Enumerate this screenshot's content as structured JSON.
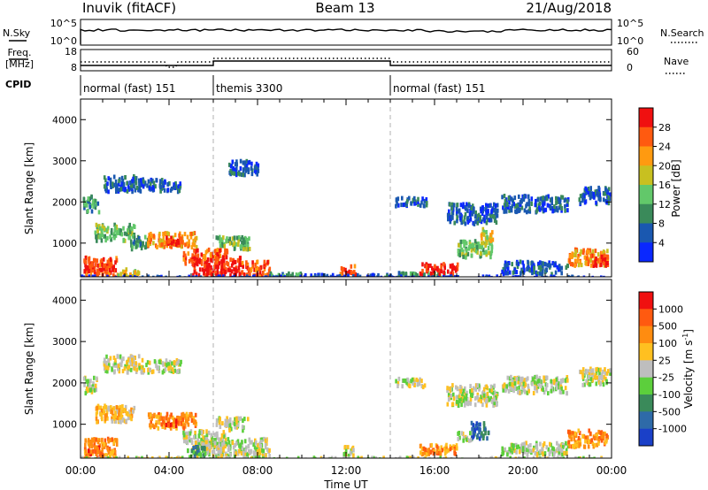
{
  "header": {
    "station": "Inuvik (fitACF)",
    "beam": "Beam 13",
    "date": "21/Aug/2018"
  },
  "top_panels": {
    "nsky_label": "N.Sky",
    "nsky_ticks": [
      "10^5",
      "10^0"
    ],
    "nsearch_label": "N.Search",
    "nsearch_ticks": [
      "10^5",
      "10^0"
    ],
    "freq_label_1": "Freq.",
    "freq_label_2": "[MHz]",
    "freq_ticks": [
      "18",
      "8"
    ],
    "nave_label": "Nave",
    "nave_ticks": [
      "60",
      "0"
    ],
    "cpid_label": "CPID",
    "cpid_segments": [
      {
        "name": "normal (fast) 151",
        "start": 0,
        "end": 6
      },
      {
        "name": "themis 3300",
        "start": 6,
        "end": 14
      },
      {
        "name": "normal (fast) 151",
        "start": 14,
        "end": 24
      }
    ]
  },
  "chart_data": [
    {
      "type": "heatmap",
      "panel": "power",
      "ylabel": "Slant Range [km]",
      "xlabel": "Time UT",
      "xlim": [
        0,
        24
      ],
      "ylim": [
        180,
        4500
      ],
      "xticks": [
        "00:00",
        "04:00",
        "08:00",
        "12:00",
        "16:00",
        "20:00",
        "00:00"
      ],
      "yticks": [
        1000,
        2000,
        3000,
        4000
      ],
      "colorbar": {
        "label": "Power [dB]",
        "ticks": [
          "4",
          "8",
          "12",
          "16",
          "20",
          "24",
          "28"
        ],
        "colors": [
          "#0a28ff",
          "#1a58b0",
          "#3a8a5a",
          "#62c86a",
          "#c8c020",
          "#ff9a10",
          "#ff5a10",
          "#f01010"
        ]
      },
      "regions": [
        {
          "t0": 0.1,
          "t1": 1.6,
          "r0": 200,
          "r1": 700,
          "level": 6
        },
        {
          "t0": 0.9,
          "t1": 1.5,
          "r0": 380,
          "r1": 560,
          "level": 7
        },
        {
          "t0": 1.6,
          "t1": 2.6,
          "r0": 220,
          "r1": 420,
          "level": 4
        },
        {
          "t0": 0.1,
          "t1": 0.8,
          "r0": 1800,
          "r1": 2200,
          "level": 2
        },
        {
          "t0": 1.0,
          "t1": 2.6,
          "r0": 2300,
          "r1": 2700,
          "level": 1
        },
        {
          "t0": 2.6,
          "t1": 4.5,
          "r0": 2300,
          "r1": 2600,
          "level": 1
        },
        {
          "t0": 0.6,
          "t1": 2.4,
          "r0": 1100,
          "r1": 1500,
          "level": 3
        },
        {
          "t0": 2.2,
          "t1": 3.0,
          "r0": 900,
          "r1": 1200,
          "level": 2
        },
        {
          "t0": 3.0,
          "t1": 5.2,
          "r0": 950,
          "r1": 1300,
          "level": 5
        },
        {
          "t0": 3.7,
          "t1": 4.6,
          "r0": 1000,
          "r1": 1200,
          "level": 7
        },
        {
          "t0": 4.6,
          "t1": 6.6,
          "r0": 550,
          "r1": 900,
          "level": 6
        },
        {
          "t0": 5.0,
          "t1": 6.0,
          "r0": 250,
          "r1": 650,
          "level": 7
        },
        {
          "t0": 6.0,
          "t1": 7.2,
          "r0": 250,
          "r1": 700,
          "level": 7
        },
        {
          "t0": 7.2,
          "t1": 8.5,
          "r0": 250,
          "r1": 600,
          "level": 6
        },
        {
          "t0": 6.1,
          "t1": 7.6,
          "r0": 900,
          "r1": 1200,
          "level": 3
        },
        {
          "t0": 6.6,
          "t1": 8.0,
          "r0": 2700,
          "r1": 3050,
          "level": 1
        },
        {
          "t0": 8.5,
          "t1": 10.0,
          "r0": 200,
          "r1": 320,
          "level": 2
        },
        {
          "t0": 11.7,
          "t1": 12.4,
          "r0": 260,
          "r1": 500,
          "level": 6
        },
        {
          "t0": 10.0,
          "t1": 14.0,
          "r0": 200,
          "r1": 280,
          "level": 1
        },
        {
          "t0": 14.2,
          "t1": 15.6,
          "r0": 1950,
          "r1": 2150,
          "level": 1
        },
        {
          "t0": 14.2,
          "t1": 16.8,
          "r0": 200,
          "r1": 330,
          "level": 2
        },
        {
          "t0": 15.3,
          "t1": 17.0,
          "r0": 300,
          "r1": 550,
          "level": 7
        },
        {
          "t0": 17.0,
          "t1": 18.6,
          "r0": 700,
          "r1": 1100,
          "level": 3
        },
        {
          "t0": 18.0,
          "t1": 18.6,
          "r0": 1100,
          "r1": 1400,
          "level": 4
        },
        {
          "t0": 16.5,
          "t1": 18.8,
          "r0": 1500,
          "r1": 2000,
          "level": 1
        },
        {
          "t0": 19.0,
          "t1": 22.0,
          "r0": 1800,
          "r1": 2200,
          "level": 1
        },
        {
          "t0": 19.0,
          "t1": 22.0,
          "r0": 300,
          "r1": 600,
          "level": 1
        },
        {
          "t0": 22.0,
          "t1": 23.8,
          "r0": 500,
          "r1": 900,
          "level": 5
        },
        {
          "t0": 23.0,
          "t1": 23.8,
          "r0": 500,
          "r1": 750,
          "level": 7
        },
        {
          "t0": 22.5,
          "t1": 23.9,
          "r0": 2000,
          "r1": 2400,
          "level": 1
        },
        {
          "t0": 0.0,
          "t1": 24.0,
          "r0": 180,
          "r1": 240,
          "level": 0
        }
      ]
    },
    {
      "type": "heatmap",
      "panel": "velocity",
      "ylabel": "Slant Range [km]",
      "xlabel": "Time UT",
      "xlim": [
        0,
        24
      ],
      "ylim": [
        180,
        4500
      ],
      "xticks": [
        "00:00",
        "04:00",
        "08:00",
        "12:00",
        "16:00",
        "20:00",
        "00:00"
      ],
      "yticks": [
        1000,
        2000,
        3000,
        4000
      ],
      "colorbar": {
        "label": "Velocity [m s",
        "label_sup": "-1",
        "label_end": "]",
        "ticks": [
          "1000",
          "500",
          "100",
          "25",
          "-25",
          "-100",
          "-500",
          "-1000"
        ],
        "colors": [
          "#1a40c8",
          "#2e6aa8",
          "#3a8a5a",
          "#5ccf3c",
          "#bebebe",
          "#ffc020",
          "#ff8c10",
          "#ff5a10",
          "#f01010"
        ]
      },
      "regions": [
        {
          "t0": 0.1,
          "t1": 1.6,
          "r0": 200,
          "r1": 700,
          "level": 6
        },
        {
          "t0": 0.3,
          "t1": 1.0,
          "r0": 300,
          "r1": 500,
          "level": 7
        },
        {
          "t0": 0.1,
          "t1": 0.8,
          "r0": 1800,
          "r1": 2200,
          "level": 4
        },
        {
          "t0": 1.0,
          "t1": 2.6,
          "r0": 2300,
          "r1": 2700,
          "level": 4
        },
        {
          "t0": 2.6,
          "t1": 4.5,
          "r0": 2300,
          "r1": 2600,
          "level": 4
        },
        {
          "t0": 0.6,
          "t1": 2.4,
          "r0": 1100,
          "r1": 1500,
          "level": 5
        },
        {
          "t0": 3.0,
          "t1": 5.2,
          "r0": 950,
          "r1": 1300,
          "level": 6
        },
        {
          "t0": 3.8,
          "t1": 4.6,
          "r0": 1000,
          "r1": 1200,
          "level": 7
        },
        {
          "t0": 4.6,
          "t1": 6.6,
          "r0": 550,
          "r1": 900,
          "level": 4
        },
        {
          "t0": 5.0,
          "t1": 6.0,
          "r0": 250,
          "r1": 650,
          "level": 4
        },
        {
          "t0": 6.0,
          "t1": 8.5,
          "r0": 250,
          "r1": 700,
          "level": 4
        },
        {
          "t0": 4.8,
          "t1": 5.6,
          "r0": 250,
          "r1": 500,
          "level": 2
        },
        {
          "t0": 6.1,
          "t1": 7.6,
          "r0": 900,
          "r1": 1200,
          "level": 4
        },
        {
          "t0": 11.7,
          "t1": 12.4,
          "r0": 260,
          "r1": 500,
          "level": 4
        },
        {
          "t0": 14.2,
          "t1": 15.6,
          "r0": 1950,
          "r1": 2150,
          "level": 4
        },
        {
          "t0": 15.3,
          "t1": 17.0,
          "r0": 300,
          "r1": 550,
          "level": 6
        },
        {
          "t0": 17.6,
          "t1": 18.4,
          "r0": 700,
          "r1": 1100,
          "level": 1
        },
        {
          "t0": 17.0,
          "t1": 17.6,
          "r0": 650,
          "r1": 850,
          "level": 4
        },
        {
          "t0": 16.5,
          "t1": 18.8,
          "r0": 1500,
          "r1": 2000,
          "level": 4
        },
        {
          "t0": 19.0,
          "t1": 22.0,
          "r0": 1800,
          "r1": 2200,
          "level": 4
        },
        {
          "t0": 19.0,
          "t1": 22.0,
          "r0": 300,
          "r1": 600,
          "level": 4
        },
        {
          "t0": 22.0,
          "t1": 23.8,
          "r0": 500,
          "r1": 900,
          "level": 6
        },
        {
          "t0": 22.5,
          "t1": 23.9,
          "r0": 2000,
          "r1": 2400,
          "level": 4
        },
        {
          "t0": 0.0,
          "t1": 24.0,
          "r0": 180,
          "r1": 240,
          "level": 4
        }
      ]
    }
  ]
}
